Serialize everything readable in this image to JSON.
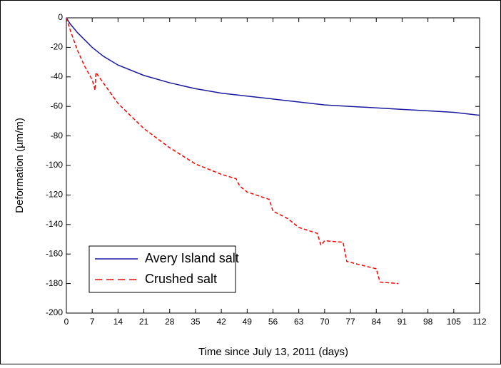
{
  "chart_data": {
    "type": "line",
    "x_label": "Time since July 13, 2011 (days)",
    "y_label": "Deformation (µm/m)",
    "xlim": [
      0,
      112
    ],
    "ylim": [
      -200,
      0
    ],
    "xticks": [
      0,
      7,
      14,
      21,
      28,
      35,
      42,
      49,
      56,
      63,
      70,
      77,
      84,
      91,
      98,
      105,
      112
    ],
    "yticks": [
      0,
      -20,
      -40,
      -60,
      -80,
      -100,
      -120,
      -140,
      -160,
      -180,
      -200
    ],
    "legend": "lower left",
    "series": [
      {
        "name": "Avery Island salt",
        "color": "#1a1aa0",
        "dash": "solid",
        "x": [
          0,
          1,
          3,
          5,
          7,
          10,
          14,
          21,
          28,
          35,
          42,
          49,
          56,
          63,
          70,
          77,
          84,
          91,
          98,
          105,
          112
        ],
        "values": [
          0,
          -4,
          -10,
          -15,
          -20,
          -26,
          -32,
          -39,
          -44,
          -48,
          -51,
          -53,
          -55,
          -57,
          -59,
          -60,
          -61,
          -62,
          -63,
          -64,
          -66
        ]
      },
      {
        "name": "Crushed salt",
        "color": "#ff0000",
        "dash": "dashed",
        "x": [
          0,
          1,
          3,
          5,
          7,
          7.8,
          8,
          10,
          14,
          21,
          28,
          35,
          42,
          46,
          47,
          49,
          55,
          56,
          60,
          63,
          68,
          69,
          70,
          75,
          76,
          84,
          85,
          90
        ],
        "values": [
          0,
          -8,
          -22,
          -33,
          -42,
          -49,
          -37,
          -44,
          -58,
          -75,
          -88,
          -99,
          -106,
          -109,
          -114,
          -118,
          -123,
          -131,
          -136,
          -142,
          -146,
          -154,
          -151,
          -152,
          -165,
          -170,
          -179,
          -180
        ]
      }
    ]
  }
}
